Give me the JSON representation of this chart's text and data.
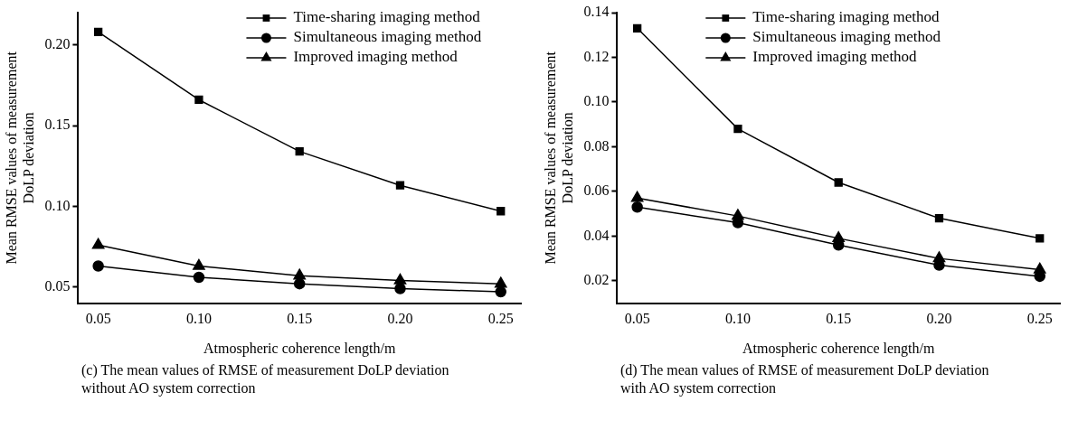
{
  "chart_data": [
    {
      "type": "line",
      "x": [
        0.05,
        0.1,
        0.15,
        0.2,
        0.25
      ],
      "xlabel": "Atmospheric coherence length/m",
      "ylabel": "Mean RMSE values of measurement\nDoLP deviation",
      "xlim": [
        0.04,
        0.26
      ],
      "xticks": [
        {
          "value": 0.05,
          "label": "0.05"
        },
        {
          "value": 0.1,
          "label": "0.10"
        },
        {
          "value": 0.15,
          "label": "0.15"
        },
        {
          "value": 0.2,
          "label": "0.20"
        },
        {
          "value": 0.25,
          "label": "0.25"
        }
      ],
      "ylim": [
        0.04,
        0.22
      ],
      "yticks": [
        {
          "value": 0.05,
          "label": "0.05"
        },
        {
          "value": 0.1,
          "label": "0.10"
        },
        {
          "value": 0.15,
          "label": "0.15"
        },
        {
          "value": 0.2,
          "label": "0.20"
        }
      ],
      "grid": false,
      "legend": "top right",
      "annotations": [
        "(c) The mean values of RMSE of measurement DoLP deviation\nwithout AO system correction"
      ],
      "series": [
        {
          "name": "Time-sharing imaging method",
          "color": "#000000",
          "marker": "square",
          "values": [
            0.208,
            0.166,
            0.134,
            0.113,
            0.097
          ]
        },
        {
          "name": "Simultaneous imaging method",
          "color": "#000000",
          "marker": "circle",
          "values": [
            0.063,
            0.056,
            0.052,
            0.049,
            0.047
          ]
        },
        {
          "name": "Improved imaging method",
          "color": "#000000",
          "marker": "triangle",
          "values": [
            0.076,
            0.063,
            0.057,
            0.054,
            0.052
          ]
        }
      ]
    },
    {
      "type": "line",
      "x": [
        0.05,
        0.1,
        0.15,
        0.2,
        0.25
      ],
      "xlabel": "Atmospheric coherence length/m",
      "ylabel": "Mean RMSE values of measurement\nDoLP deviation",
      "xlim": [
        0.04,
        0.26
      ],
      "xticks": [
        {
          "value": 0.05,
          "label": "0.05"
        },
        {
          "value": 0.1,
          "label": "0.10"
        },
        {
          "value": 0.15,
          "label": "0.15"
        },
        {
          "value": 0.2,
          "label": "0.20"
        },
        {
          "value": 0.25,
          "label": "0.25"
        }
      ],
      "ylim": [
        0.01,
        0.14
      ],
      "yticks": [
        0.02,
        0.04,
        0.06,
        0.08,
        {
          "value": 0.1,
          "label": "0.10"
        },
        0.12,
        0.14
      ],
      "grid": false,
      "legend": "top",
      "annotations": [
        "(d) The mean values of RMSE of measurement DoLP deviation\nwith AO system correction"
      ],
      "series": [
        {
          "name": "Time-sharing imaging method",
          "color": "#000000",
          "marker": "square",
          "values": [
            0.133,
            0.088,
            0.064,
            0.048,
            0.039
          ]
        },
        {
          "name": "Simultaneous imaging method",
          "color": "#000000",
          "marker": "circle",
          "values": [
            0.053,
            0.046,
            0.036,
            0.027,
            0.022
          ]
        },
        {
          "name": "Improved imaging method",
          "color": "#000000",
          "marker": "triangle",
          "values": [
            0.057,
            0.049,
            0.039,
            0.03,
            0.025
          ]
        }
      ]
    }
  ]
}
